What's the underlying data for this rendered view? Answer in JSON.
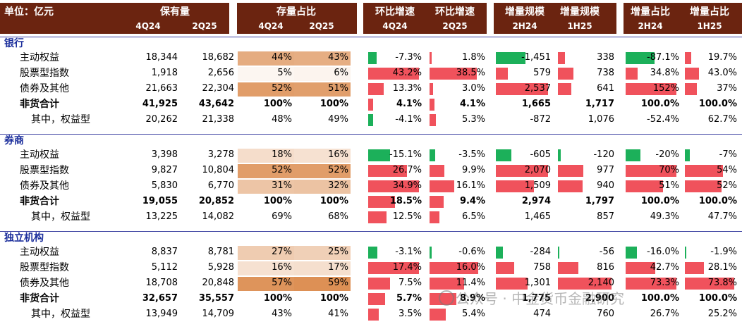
{
  "header": {
    "unit": "单位：亿元",
    "groups": [
      "保有量",
      "存量占比",
      "环比增速",
      "环比增速",
      "增量规模",
      "增量规模",
      "增量占比",
      "增量占比"
    ],
    "subs": [
      "4Q24",
      "2Q25",
      "4Q24",
      "2Q25",
      "4Q24",
      "2Q25",
      "2H24",
      "1H25",
      "2H24",
      "1H25"
    ]
  },
  "colors": {
    "header_bg": "#6b2410",
    "pos_bar": "#f0525c",
    "neg_bar": "#1cb05a",
    "heat": "#dc8e52"
  },
  "sections": [
    {
      "name": "银行",
      "rows": [
        {
          "label": "主动权益",
          "bold": false,
          "aum": [
            "18,344",
            "18,682"
          ],
          "share": [
            "44%",
            "43%"
          ],
          "share_v": [
            44,
            43
          ],
          "growth": [
            "-7.3%",
            "1.8%"
          ],
          "growth_v": [
            -7.3,
            1.8
          ],
          "inc": [
            "-1,451",
            "338"
          ],
          "inc_v": [
            -1451,
            338
          ],
          "incshare": [
            "-87.1%",
            "19.7%"
          ],
          "incshare_v": [
            -87.1,
            19.7
          ]
        },
        {
          "label": "股票型指数",
          "bold": false,
          "aum": [
            "1,918",
            "2,656"
          ],
          "share": [
            "5%",
            "6%"
          ],
          "share_v": [
            5,
            6
          ],
          "growth": [
            "43.2%",
            "38.5%"
          ],
          "growth_v": [
            43.2,
            38.5
          ],
          "inc": [
            "579",
            "738"
          ],
          "inc_v": [
            579,
            738
          ],
          "incshare": [
            "34.8%",
            "43.0%"
          ],
          "incshare_v": [
            34.8,
            43.0
          ]
        },
        {
          "label": "债券及其他",
          "bold": false,
          "aum": [
            "21,663",
            "22,304"
          ],
          "share": [
            "52%",
            "51%"
          ],
          "share_v": [
            52,
            51
          ],
          "growth": [
            "13.3%",
            "3.0%"
          ],
          "growth_v": [
            13.3,
            3.0
          ],
          "inc": [
            "2,537",
            "641"
          ],
          "inc_v": [
            2537,
            641
          ],
          "incshare": [
            "152%",
            "37%"
          ],
          "incshare_v": [
            152,
            37
          ]
        },
        {
          "label": "非货合计",
          "bold": true,
          "aum": [
            "41,925",
            "43,642"
          ],
          "share": [
            "100%",
            "100%"
          ],
          "share_v": [
            null,
            null
          ],
          "growth": [
            "4.1%",
            "4.1%"
          ],
          "growth_v": [
            4.1,
            4.1
          ],
          "inc": [
            "1,665",
            "1,717"
          ],
          "inc_v": [
            null,
            null
          ],
          "incshare": [
            "100.0%",
            "100.0%"
          ],
          "incshare_v": [
            null,
            null
          ]
        },
        {
          "label": "其中，权益型",
          "bold": false,
          "sub": true,
          "aum": [
            "20,262",
            "21,338"
          ],
          "share": [
            "48%",
            "49%"
          ],
          "share_v": [
            null,
            null
          ],
          "growth": [
            "-4.1%",
            "5.3%"
          ],
          "growth_v": [
            -4.1,
            5.3
          ],
          "inc": [
            "-872",
            "1,076"
          ],
          "inc_v": [
            null,
            null
          ],
          "incshare": [
            "-52.4%",
            "62.7%"
          ],
          "incshare_v": [
            null,
            null
          ]
        }
      ]
    },
    {
      "name": "券商",
      "rows": [
        {
          "label": "主动权益",
          "bold": false,
          "aum": [
            "3,398",
            "3,278"
          ],
          "share": [
            "18%",
            "16%"
          ],
          "share_v": [
            18,
            16
          ],
          "growth": [
            "-15.1%",
            "-3.5%"
          ],
          "growth_v": [
            -15.1,
            -3.5
          ],
          "inc": [
            "-605",
            "-120"
          ],
          "inc_v": [
            -605,
            -120
          ],
          "incshare": [
            "-20%",
            "-7%"
          ],
          "incshare_v": [
            -20,
            -7
          ]
        },
        {
          "label": "股票型指数",
          "bold": false,
          "aum": [
            "9,827",
            "10,804"
          ],
          "share": [
            "52%",
            "52%"
          ],
          "share_v": [
            52,
            52
          ],
          "growth": [
            "26.7%",
            "9.9%"
          ],
          "growth_v": [
            26.7,
            9.9
          ],
          "inc": [
            "2,070",
            "977"
          ],
          "inc_v": [
            2070,
            977
          ],
          "incshare": [
            "70%",
            "54%"
          ],
          "incshare_v": [
            70,
            54
          ]
        },
        {
          "label": "债券及其他",
          "bold": false,
          "aum": [
            "5,830",
            "6,770"
          ],
          "share": [
            "31%",
            "32%"
          ],
          "share_v": [
            31,
            32
          ],
          "growth": [
            "34.9%",
            "16.1%"
          ],
          "growth_v": [
            34.9,
            16.1
          ],
          "inc": [
            "1,509",
            "940"
          ],
          "inc_v": [
            1509,
            940
          ],
          "incshare": [
            "51%",
            "52%"
          ],
          "incshare_v": [
            51,
            52
          ]
        },
        {
          "label": "非货合计",
          "bold": true,
          "aum": [
            "19,055",
            "20,852"
          ],
          "share": [
            "100%",
            "100%"
          ],
          "share_v": [
            null,
            null
          ],
          "growth": [
            "18.5%",
            "9.4%"
          ],
          "growth_v": [
            18.5,
            9.4
          ],
          "inc": [
            "2,974",
            "1,797"
          ],
          "inc_v": [
            null,
            null
          ],
          "incshare": [
            "100.0%",
            "100.0%"
          ],
          "incshare_v": [
            null,
            null
          ]
        },
        {
          "label": "其中，权益型",
          "bold": false,
          "sub": true,
          "aum": [
            "13,225",
            "14,082"
          ],
          "share": [
            "69%",
            "68%"
          ],
          "share_v": [
            null,
            null
          ],
          "growth": [
            "12.5%",
            "6.5%"
          ],
          "growth_v": [
            12.5,
            6.5
          ],
          "inc": [
            "1,465",
            "857"
          ],
          "inc_v": [
            null,
            null
          ],
          "incshare": [
            "49.3%",
            "47.7%"
          ],
          "incshare_v": [
            null,
            null
          ]
        }
      ]
    },
    {
      "name": "独立机构",
      "rows": [
        {
          "label": "主动权益",
          "bold": false,
          "aum": [
            "8,837",
            "8,781"
          ],
          "share": [
            "27%",
            "25%"
          ],
          "share_v": [
            27,
            25
          ],
          "growth": [
            "-3.1%",
            "-0.6%"
          ],
          "growth_v": [
            -3.1,
            -0.6
          ],
          "inc": [
            "-284",
            "-56"
          ],
          "inc_v": [
            -284,
            -56
          ],
          "incshare": [
            "-16.0%",
            "-1.9%"
          ],
          "incshare_v": [
            -16.0,
            -1.9
          ]
        },
        {
          "label": "股票型指数",
          "bold": false,
          "aum": [
            "5,112",
            "5,928"
          ],
          "share": [
            "16%",
            "17%"
          ],
          "share_v": [
            16,
            17
          ],
          "growth": [
            "17.4%",
            "16.0%"
          ],
          "growth_v": [
            17.4,
            16.0
          ],
          "inc": [
            "758",
            "816"
          ],
          "inc_v": [
            758,
            816
          ],
          "incshare": [
            "42.7%",
            "28.1%"
          ],
          "incshare_v": [
            42.7,
            28.1
          ]
        },
        {
          "label": "债券及其他",
          "bold": false,
          "aum": [
            "18,708",
            "20,848"
          ],
          "share": [
            "57%",
            "59%"
          ],
          "share_v": [
            57,
            59
          ],
          "growth": [
            "7.5%",
            "11.4%"
          ],
          "growth_v": [
            7.5,
            11.4
          ],
          "inc": [
            "1,301",
            "2,140"
          ],
          "inc_v": [
            1301,
            2140
          ],
          "incshare": [
            "73.3%",
            "73.8%"
          ],
          "incshare_v": [
            73.3,
            73.8
          ]
        },
        {
          "label": "非货合计",
          "bold": true,
          "aum": [
            "32,657",
            "35,557"
          ],
          "share": [
            "100%",
            "100%"
          ],
          "share_v": [
            null,
            null
          ],
          "growth": [
            "5.7%",
            "8.9%"
          ],
          "growth_v": [
            5.7,
            8.9
          ],
          "inc": [
            "1,775",
            "2,900"
          ],
          "inc_v": [
            null,
            null
          ],
          "incshare": [
            "100.0%",
            "100.0%"
          ],
          "incshare_v": [
            null,
            null
          ]
        },
        {
          "label": "其中，权益型",
          "bold": false,
          "sub": true,
          "aum": [
            "13,949",
            "14,709"
          ],
          "share": [
            "43%",
            "41%"
          ],
          "share_v": [
            null,
            null
          ],
          "growth": [
            "3.5%",
            "5.4%"
          ],
          "growth_v": [
            3.5,
            5.4
          ],
          "inc": [
            "474",
            "760"
          ],
          "inc_v": [
            null,
            null
          ],
          "incshare": [
            "26.7%",
            "25.2%"
          ],
          "incshare_v": [
            null,
            null
          ]
        }
      ]
    }
  ],
  "watermark": "公众号 · 中金货币金融研究"
}
